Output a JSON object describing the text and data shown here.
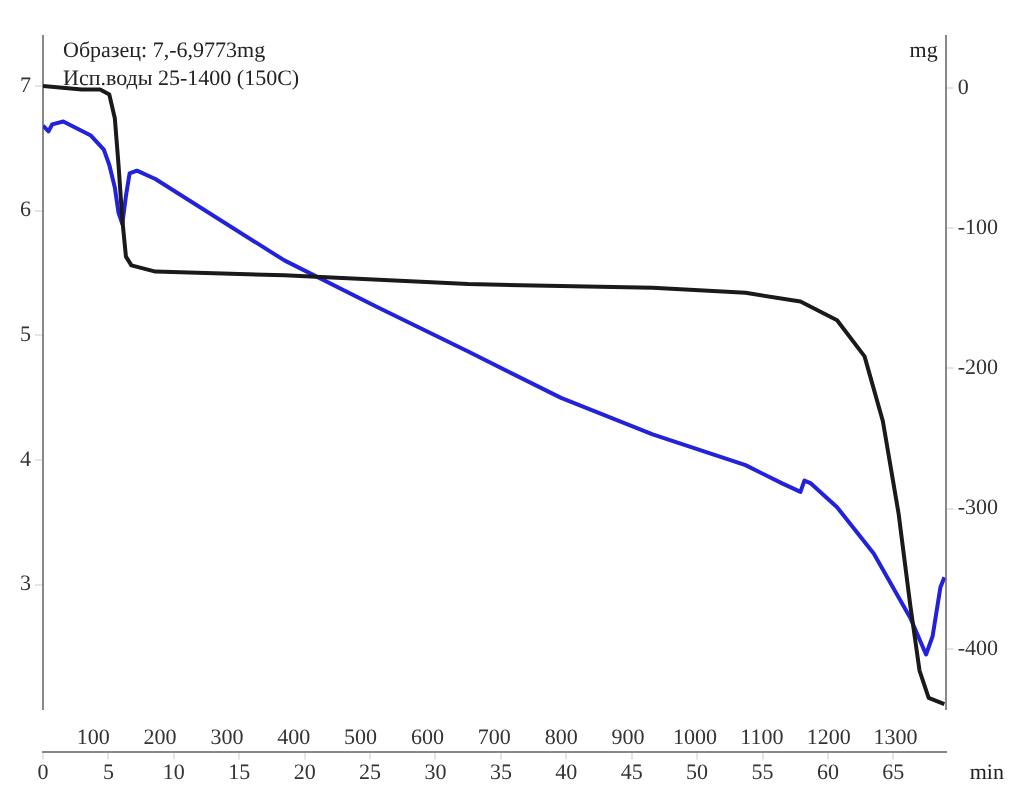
{
  "chart_data": {
    "type": "line",
    "title": "Образец: 7,-6,9773mg",
    "subtitle": "Исп.воды 25-1400 (150C)",
    "xlabel": "min",
    "y2label": "mg",
    "xlim": [
      0,
      69
    ],
    "xticks": [
      0,
      5,
      10,
      15,
      20,
      25,
      30,
      35,
      40,
      45,
      50,
      55,
      60,
      65
    ],
    "x2lim": [
      25,
      1375
    ],
    "x2ticks": [
      100,
      200,
      300,
      400,
      500,
      600,
      700,
      800,
      900,
      1000,
      1100,
      1200,
      1300
    ],
    "ylim": [
      2,
      7.4
    ],
    "yticks": [
      3,
      4,
      5,
      6,
      7
    ],
    "y2lim": [
      -443,
      37
    ],
    "y2ticks": [
      -400,
      -300,
      -200,
      -100,
      0
    ],
    "grid": false,
    "legend": false,
    "marker": "none",
    "line_style": "solid",
    "series": [
      {
        "color": "#1a1a1a",
        "x": [
          0,
          2.96,
          4.37,
          5.07,
          5.49,
          5.77,
          6.06,
          6.34,
          6.76,
          8.59,
          18.45,
          32.5,
          46.6,
          53.7,
          57.9,
          60.7,
          62.8,
          64.2,
          65.4,
          66.3,
          67.0,
          67.7,
          68.9
        ],
        "values": [
          7.0,
          6.97,
          6.97,
          6.93,
          6.74,
          6.37,
          5.93,
          5.63,
          5.56,
          5.51,
          5.48,
          5.41,
          5.38,
          5.34,
          5.27,
          5.12,
          4.83,
          4.31,
          3.57,
          2.83,
          2.31,
          2.09,
          2.04
        ]
      },
      {
        "color": "#2222dd",
        "axis": "y2",
        "x": [
          0,
          0.42,
          0.7,
          1.55,
          3.66,
          4.65,
          5.07,
          5.49,
          5.77,
          6.06,
          6.34,
          6.62,
          7.18,
          8.59,
          18.45,
          25.5,
          32.5,
          39.6,
          46.6,
          53.7,
          56.5,
          57.9,
          58.2,
          58.7,
          60.7,
          63.5,
          66.3,
          67.5,
          68.0,
          68.6,
          68.9
        ],
        "values": [
          -27,
          -31,
          -26,
          -24,
          -34,
          -44,
          -55,
          -71,
          -89,
          -97,
          -77,
          -61,
          -59,
          -65,
          -123,
          -156,
          -188,
          -221,
          -247,
          -269,
          -282,
          -288,
          -280,
          -282,
          -299,
          -332,
          -378,
          -404,
          -391,
          -356,
          -349
        ]
      }
    ]
  }
}
